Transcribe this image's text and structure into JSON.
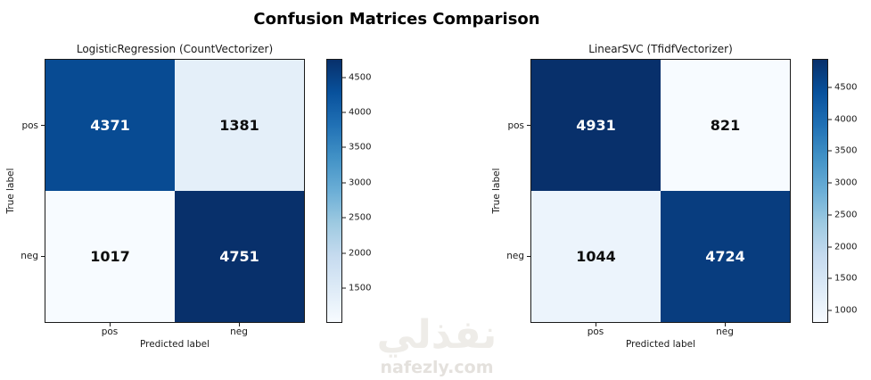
{
  "figure": {
    "title": "Confusion Matrices Comparison"
  },
  "watermark": {
    "logo_text": "نفذلي",
    "site_text": "nafezly.com"
  },
  "chart_data": [
    {
      "type": "heatmap",
      "title": "LogisticRegression (CountVectorizer)",
      "xlabel": "Predicted label",
      "ylabel": "True label",
      "x_categories": [
        "pos",
        "neg"
      ],
      "y_categories": [
        "pos",
        "neg"
      ],
      "values": [
        [
          4371,
          1381
        ],
        [
          1017,
          4751
        ]
      ],
      "vmin": 1017,
      "vmax": 4751,
      "colormap": "Blues",
      "colorbar_ticks": [
        1500,
        2000,
        2500,
        3000,
        3500,
        4000,
        4500
      ],
      "colors": {
        "dark_cell": "#08306b",
        "light_cell": "#f7fbff"
      }
    },
    {
      "type": "heatmap",
      "title": "LinearSVC (TfidfVectorizer)",
      "xlabel": "Predicted label",
      "ylabel": "True label",
      "x_categories": [
        "pos",
        "neg"
      ],
      "y_categories": [
        "pos",
        "neg"
      ],
      "values": [
        [
          4931,
          821
        ],
        [
          1044,
          4724
        ]
      ],
      "vmin": 821,
      "vmax": 4931,
      "colormap": "Blues",
      "colorbar_ticks": [
        1000,
        1500,
        2000,
        2500,
        3000,
        3500,
        4000,
        4500
      ],
      "colors": {
        "dark_cell": "#08306b",
        "light_cell": "#f7fbff"
      }
    }
  ]
}
